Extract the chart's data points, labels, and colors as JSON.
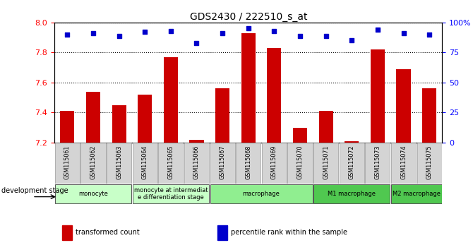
{
  "title": "GDS2430 / 222510_s_at",
  "samples": [
    "GSM115061",
    "GSM115062",
    "GSM115063",
    "GSM115064",
    "GSM115065",
    "GSM115066",
    "GSM115067",
    "GSM115068",
    "GSM115069",
    "GSM115070",
    "GSM115071",
    "GSM115072",
    "GSM115073",
    "GSM115074",
    "GSM115075"
  ],
  "bar_values": [
    7.41,
    7.54,
    7.45,
    7.52,
    7.77,
    7.22,
    7.56,
    7.93,
    7.83,
    7.3,
    7.41,
    7.21,
    7.82,
    7.69,
    7.56
  ],
  "dot_values": [
    90,
    91,
    89,
    92,
    93,
    83,
    91,
    95,
    93,
    89,
    89,
    85,
    94,
    91,
    90
  ],
  "bar_color": "#cc0000",
  "dot_color": "#0000cc",
  "ymin": 7.2,
  "ymax": 8.0,
  "y_ticks": [
    7.2,
    7.4,
    7.6,
    7.8,
    8.0
  ],
  "y2min": 0,
  "y2max": 100,
  "y2_ticks": [
    0,
    25,
    50,
    75,
    100
  ],
  "y2_tick_labels": [
    "0",
    "25",
    "50",
    "75",
    "100%"
  ],
  "grid_values": [
    7.4,
    7.6,
    7.8
  ],
  "stage_groups": [
    {
      "label": "monocyte",
      "start": 0,
      "end": 2,
      "color": "#c8ffc8"
    },
    {
      "label": "monocyte at intermediat\ne differentiation stage",
      "start": 3,
      "end": 5,
      "color": "#c8ffc8"
    },
    {
      "label": "macrophage",
      "start": 6,
      "end": 9,
      "color": "#90ee90"
    },
    {
      "label": "M1 macrophage",
      "start": 10,
      "end": 12,
      "color": "#50c850"
    },
    {
      "label": "M2 macrophage",
      "start": 13,
      "end": 14,
      "color": "#50c850"
    }
  ],
  "legend_items": [
    {
      "label": "transformed count",
      "color": "#cc0000"
    },
    {
      "label": "percentile rank within the sample",
      "color": "#0000cc"
    }
  ],
  "dev_stage_label": "development stage"
}
